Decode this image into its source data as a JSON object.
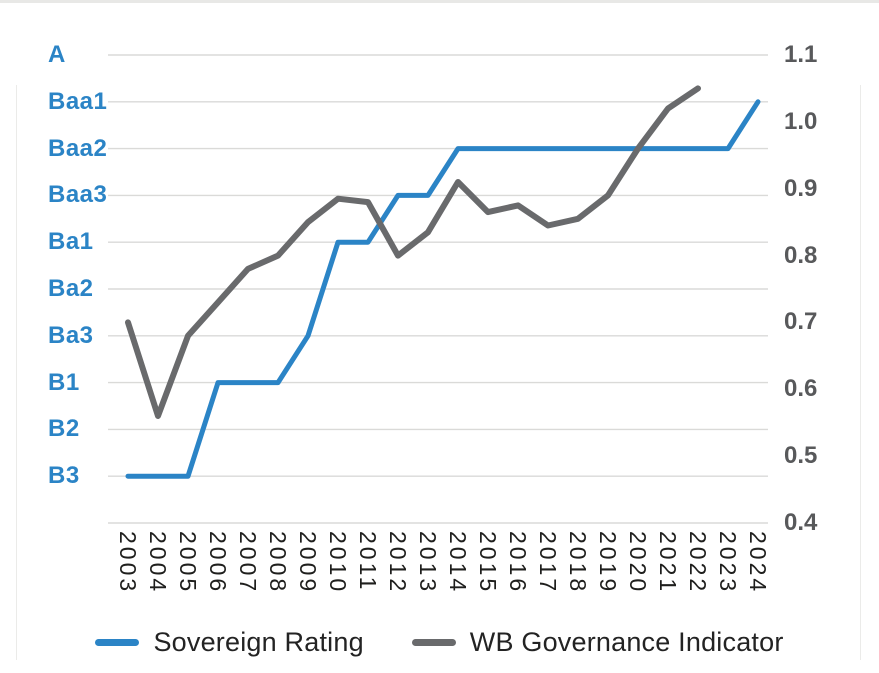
{
  "chart_data": {
    "type": "line",
    "title": "",
    "x": [
      2003,
      2004,
      2005,
      2006,
      2007,
      2008,
      2009,
      2010,
      2011,
      2012,
      2013,
      2014,
      2015,
      2016,
      2017,
      2018,
      2019,
      2020,
      2021,
      2022,
      2023,
      2024
    ],
    "left_axis": {
      "kind": "sovereign-rating-scale",
      "labels_top_to_bottom": [
        "A",
        "Baa1",
        "Baa2",
        "Baa3",
        "Ba1",
        "Ba2",
        "Ba3",
        "B1",
        "B2",
        "B3"
      ],
      "label_color": "#2b84c6"
    },
    "right_axis": {
      "kind": "numeric",
      "ticks_top_to_bottom": [
        "1.1",
        "1.0",
        "0.9",
        "0.8",
        "0.7",
        "0.6",
        "0.5",
        "0.4"
      ],
      "max": 1.1,
      "min": 0.4,
      "label_color": "#58595b"
    },
    "series": [
      {
        "name": "Sovereign Rating",
        "axis": "left",
        "color": "#2b84c6",
        "stroke_width": 5,
        "values": [
          "B3",
          "B3",
          "B3",
          "B1",
          "B1",
          "B1",
          "Ba3",
          "Ba1",
          "Ba1",
          "Baa3",
          "Baa3",
          "Baa2",
          "Baa2",
          "Baa2",
          "Baa2",
          "Baa2",
          "Baa2",
          "Baa2",
          "Baa2",
          "Baa2",
          "Baa2",
          "Baa1"
        ]
      },
      {
        "name": "WB Governance Indicator",
        "axis": "right",
        "color": "#696a6c",
        "stroke_width": 6,
        "values": [
          0.7,
          0.56,
          0.68,
          0.73,
          0.78,
          0.8,
          0.85,
          0.885,
          0.88,
          0.8,
          0.835,
          0.91,
          0.865,
          0.875,
          0.845,
          0.855,
          0.89,
          0.96,
          1.02,
          1.05,
          null,
          null
        ]
      }
    ],
    "grid": "horizontal",
    "gridline_color": "#dadad8",
    "legend_position": "bottom"
  },
  "legend": {
    "items": [
      {
        "label": "Sovereign Rating",
        "color": "#2b84c6"
      },
      {
        "label": "WB Governance Indicator",
        "color": "#696a6c"
      }
    ]
  }
}
